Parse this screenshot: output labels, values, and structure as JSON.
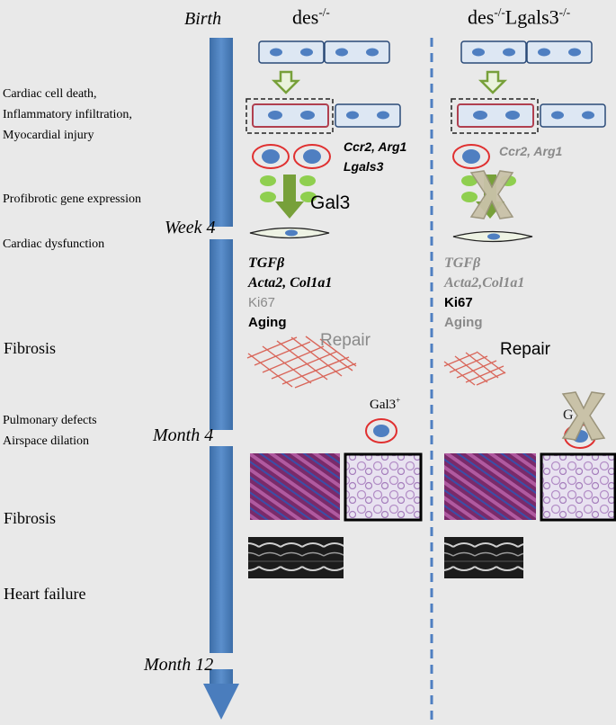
{
  "timeline": {
    "birth": "Birth",
    "week4": "Week 4",
    "month4": "Month 4",
    "month12": "Month 12"
  },
  "columns": {
    "left_header": "des",
    "left_header_sup": "-/-",
    "right_header_a": "des",
    "right_header_sup1": "-/-",
    "right_header_b": "Lgals3",
    "right_header_sup2": "-/-"
  },
  "left_labels": {
    "cell_death": "Cardiac cell death,",
    "inflammatory": "Inflammatory infiltration,",
    "injury": "Myocardial injury",
    "profibrotic": "Profibrotic  gene expression",
    "dysfunction": "Cardiac dysfunction",
    "fibrosis1": "Fibrosis",
    "pulmonary": "Pulmonary defects",
    "airspace": "Airspace dilation",
    "fibrosis2": "Fibrosis",
    "heart_failure": "Heart failure"
  },
  "des_column": {
    "genes1": "Ccr2, Arg1",
    "genes2": "Lgals3",
    "gal3": "Gal3",
    "tgfb": "TGFβ",
    "acta": "Acta2, Col1a1",
    "ki67": "Ki67",
    "aging": "Aging",
    "repair": "Repair",
    "gal3_pos": "Gal3",
    "gal3_pos_sup": "+"
  },
  "ko_column": {
    "genes1": "Ccr2, Arg1",
    "tgfb": "TGFβ",
    "acta": "Acta2,Col1a1",
    "ki67": "Ki67",
    "aging": "Aging",
    "repair": "Repair"
  },
  "colors": {
    "background": "#e9e9e9",
    "timeline_blue": "#4f81bd",
    "divider_blue": "#4f7fc1",
    "cell_fill": "#4f7fc1",
    "macrophage_ring": "#e03030",
    "arrow_green": "#77a03a",
    "dot_green": "#8fcf4f",
    "fibrosis_red": "#d9665a",
    "grey_text": "#8a8a8a"
  }
}
